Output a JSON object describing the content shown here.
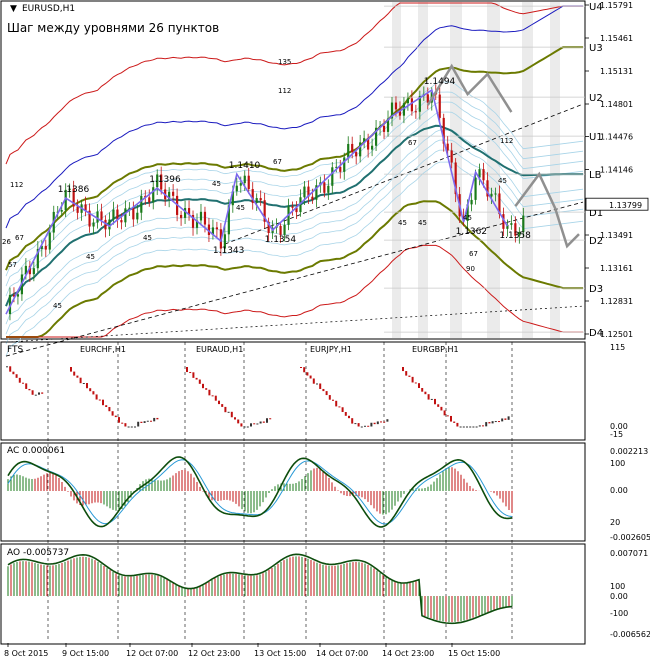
{
  "main": {
    "symbol": "EURUSD,H1",
    "subtitle": "Шаг между уровнями 26 пунктов",
    "current_price": "1.13799",
    "price_axis": [
      "1.15791",
      "1.15461",
      "1.15131",
      "1.14801",
      "1.14476",
      "1.14146",
      "1.13799",
      "1.13491",
      "1.13161",
      "1.12831",
      "1.12501"
    ],
    "level_labels": [
      "U4",
      "U3",
      "U2",
      "U1",
      "LB",
      "D1",
      "D2",
      "D3",
      "D4"
    ],
    "annotations": [
      {
        "text": "1.1386",
        "price": 1.1386,
        "bar": 15
      },
      {
        "text": "1.1396",
        "price": 1.1396,
        "bar": 38
      },
      {
        "text": "1.1410",
        "price": 1.141,
        "bar": 58
      },
      {
        "text": "1.1343",
        "price": 1.1343,
        "bar": 54
      },
      {
        "text": "1.1354",
        "price": 1.1354,
        "bar": 67
      },
      {
        "text": "1.1494",
        "price": 1.1494,
        "bar": 107
      },
      {
        "text": "1.1362",
        "price": 1.1362,
        "bar": 115
      },
      {
        "text": "1.1358",
        "price": 1.1358,
        "bar": 126
      }
    ],
    "small_labels": [
      "135",
      "112",
      "112",
      "67",
      "67",
      "45",
      "45",
      "45",
      "45",
      "45",
      "45",
      "45",
      "45",
      "112",
      "67",
      "90",
      "57",
      "26",
      "67",
      "45"
    ]
  },
  "subpanel_fts": {
    "label": "FTS",
    "pairs": [
      "EURCHF,H1",
      "EURAUD,H1",
      "EURJPY,H1",
      "EURGBP,H1"
    ],
    "axis": [
      "115",
      "0.00",
      "-15"
    ]
  },
  "subpanel_ac": {
    "label": "AC 0.000061",
    "axis": [
      "0.002213",
      "100",
      "0.00",
      "20",
      "-0.002605"
    ]
  },
  "subpanel_ao": {
    "label": "AO -0.005737",
    "axis": [
      "0.007071",
      "100",
      "0.00",
      "-100",
      "-0.006562"
    ]
  },
  "time_axis": [
    "8 Oct 2015",
    "9 Oct 15:00",
    "12 Oct 07:00",
    "12 Oct 23:00",
    "13 Oct 15:00",
    "14 Oct 07:00",
    "14 Oct 23:00",
    "15 Oct 15:00"
  ],
  "colors": {
    "bull": "#1a7a1a",
    "bear": "#c01010",
    "wave": "#7b68ee",
    "forecast": "#909090",
    "u4": "#1b1bbf",
    "olive": "#6b7a00",
    "teal": "#207070",
    "red": "#cc1a1a"
  },
  "chart_data": {
    "type": "candlestick",
    "instrument": "EURUSD",
    "timeframe": "H1",
    "y_range": [
      1.12501,
      1.15791
    ],
    "levels": {
      "U4": 1.1578,
      "U3": 1.1537,
      "U2": 1.1487,
      "U1": 1.1448,
      "LB": 1.141,
      "D1": 1.1372,
      "D2": 1.1344,
      "D3": 1.1296,
      "D4": 1.1252
    },
    "wave_points": [
      {
        "bar": 0,
        "price": 1.127
      },
      {
        "bar": 15,
        "price": 1.1386
      },
      {
        "bar": 26,
        "price": 1.1358
      },
      {
        "bar": 38,
        "price": 1.1396
      },
      {
        "bar": 54,
        "price": 1.1343
      },
      {
        "bar": 58,
        "price": 1.141
      },
      {
        "bar": 67,
        "price": 1.1354
      },
      {
        "bar": 97,
        "price": 1.1468
      },
      {
        "bar": 107,
        "price": 1.1494
      },
      {
        "bar": 115,
        "price": 1.1362
      },
      {
        "bar": 118,
        "price": 1.1412
      },
      {
        "bar": 126,
        "price": 1.1358
      }
    ],
    "forecast_points": [
      {
        "bar": 106,
        "price": 1.1479
      },
      {
        "bar": 112,
        "price": 1.1518
      },
      {
        "bar": 116,
        "price": 1.149
      },
      {
        "bar": 121,
        "price": 1.151
      },
      {
        "bar": 127,
        "price": 1.1472
      }
    ],
    "forecast2_points": [
      {
        "bar": 128,
        "price": 1.1378
      },
      {
        "bar": 134,
        "price": 1.141
      },
      {
        "bar": 138,
        "price": 1.1376
      },
      {
        "bar": 141,
        "price": 1.1338
      },
      {
        "bar": 144,
        "price": 1.135
      }
    ]
  }
}
